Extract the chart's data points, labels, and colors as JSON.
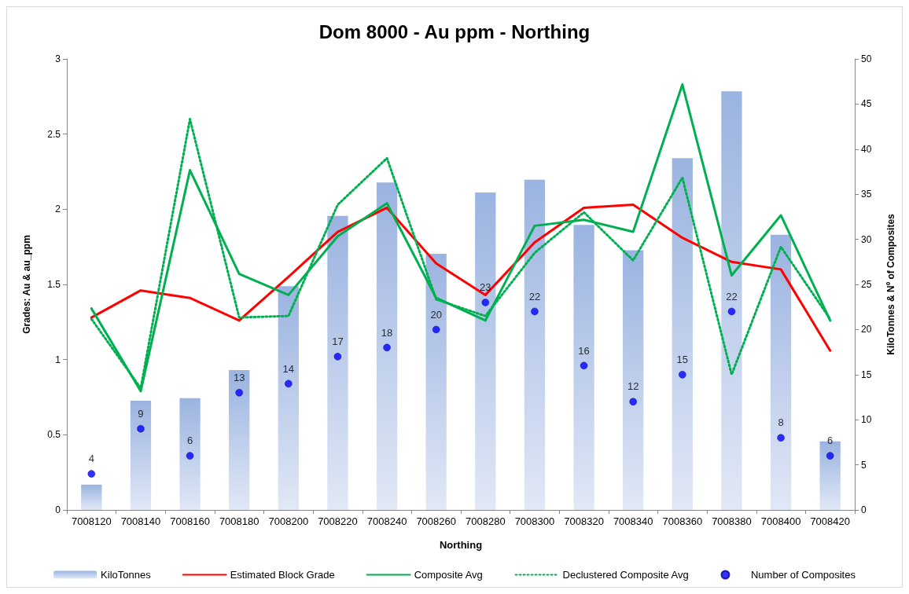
{
  "chart_data": {
    "type": "bar",
    "title": "Dom 8000 - Au ppm - Northing",
    "xlabel": "Northing",
    "ylabel": "Grades: Au & au_ppm",
    "y2label": "KiloTonnes & Nº of Composites",
    "categories": [
      "7008120",
      "7008140",
      "7008160",
      "7008180",
      "7008200",
      "7008220",
      "7008240",
      "7008260",
      "7008280",
      "7008300",
      "7008320",
      "7008340",
      "7008360",
      "7008380",
      "7008400",
      "7008420"
    ],
    "series": [
      {
        "name": "KiloTonnes",
        "type": "bar",
        "axis": "y2",
        "color": "#9ab3e0",
        "values": [
          2.8,
          12.1,
          12.4,
          15.5,
          24.8,
          32.6,
          36.3,
          28.4,
          35.2,
          36.6,
          31.6,
          28.8,
          39.0,
          46.4,
          30.5,
          7.6
        ]
      },
      {
        "name": "Estimated Block Grade",
        "type": "line",
        "color": "#ff0000",
        "line_style": "solid",
        "values": [
          1.28,
          1.46,
          1.41,
          1.26,
          1.55,
          1.85,
          2.01,
          1.64,
          1.43,
          1.78,
          2.01,
          2.03,
          1.81,
          1.65,
          1.6,
          1.06
        ]
      },
      {
        "name": "Composite Avg",
        "type": "line",
        "color": "#00b050",
        "line_style": "solid",
        "values": [
          1.34,
          0.79,
          2.26,
          1.57,
          1.43,
          1.82,
          2.04,
          1.41,
          1.26,
          1.89,
          1.93,
          1.85,
          2.83,
          1.56,
          1.96,
          1.26
        ]
      },
      {
        "name": "Declustered Composite Avg",
        "type": "line",
        "color": "#00b050",
        "line_style": "dotted",
        "values": [
          1.27,
          0.81,
          2.6,
          1.28,
          1.29,
          2.03,
          2.34,
          1.4,
          1.29,
          1.71,
          1.98,
          1.66,
          2.21,
          0.9,
          1.75,
          1.27
        ]
      },
      {
        "name": "Number of Composites",
        "type": "scatter",
        "axis": "y2",
        "color": "#0000ff",
        "marker": "circle",
        "data_labels": true,
        "values": [
          4,
          9,
          6,
          13,
          14,
          17,
          18,
          20,
          23,
          22,
          16,
          12,
          15,
          22,
          8,
          6
        ]
      }
    ],
    "ylim": [
      0,
      3
    ],
    "yticks": [
      0,
      0.5,
      1,
      1.5,
      2,
      2.5,
      3
    ],
    "y2lim": [
      0,
      50
    ],
    "y2ticks": [
      0,
      5,
      10,
      15,
      20,
      25,
      30,
      35,
      40,
      45,
      50
    ],
    "grid": false,
    "legend": "bottom"
  }
}
